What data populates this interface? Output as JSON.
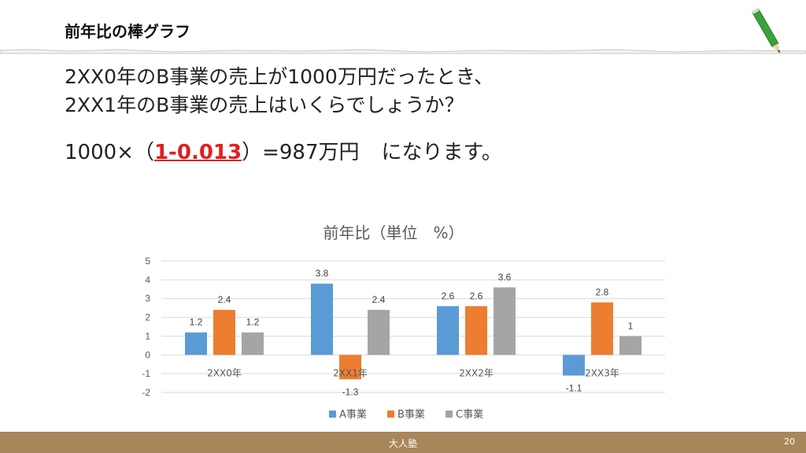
{
  "slide": {
    "title": "前年比の棒グラフ",
    "question_line1": "2XX0年のB事業の売上が1000万円だったとき、",
    "question_line2": "2XX1年のB事業の売上はいくらでしょうか？",
    "answer_prefix": "1000×（",
    "answer_highlight": "1-0.013",
    "answer_suffix": "）=987万円",
    "answer_tail": "になります。"
  },
  "footer": {
    "org": "大人塾",
    "page": "20"
  },
  "colors": {
    "accent_red": "#e02020",
    "footer_bg": "#a8865a",
    "pencil": "#3aa23a"
  },
  "icons": {
    "pencil": "pencil-icon"
  },
  "chart_data": {
    "type": "bar",
    "title": "前年比（単位　%）",
    "categories": [
      "2XX0年",
      "2XX1年",
      "2XX2年",
      "2XX3年"
    ],
    "series": [
      {
        "name": "A事業",
        "color": "#5b9bd5",
        "values": [
          1.2,
          3.8,
          2.6,
          -1.1
        ]
      },
      {
        "name": "B事業",
        "color": "#ed7d31",
        "values": [
          2.4,
          -1.3,
          2.6,
          2.8
        ]
      },
      {
        "name": "C事業",
        "color": "#a5a5a5",
        "values": [
          1.2,
          2.4,
          3.6,
          1
        ]
      }
    ],
    "ylim": [
      -2,
      5
    ],
    "yticks": [
      "5",
      "4",
      "3",
      "2",
      "1",
      "0",
      "-1",
      "-2"
    ],
    "data_labels": [
      [
        "1.2",
        "3.8",
        "2.6",
        "-1.1"
      ],
      [
        "2.4",
        "-1.3",
        "2.6",
        "2.8"
      ],
      [
        "1.2",
        "2.4",
        "3.6",
        "1"
      ]
    ],
    "grid": true,
    "legend": "bottom"
  }
}
